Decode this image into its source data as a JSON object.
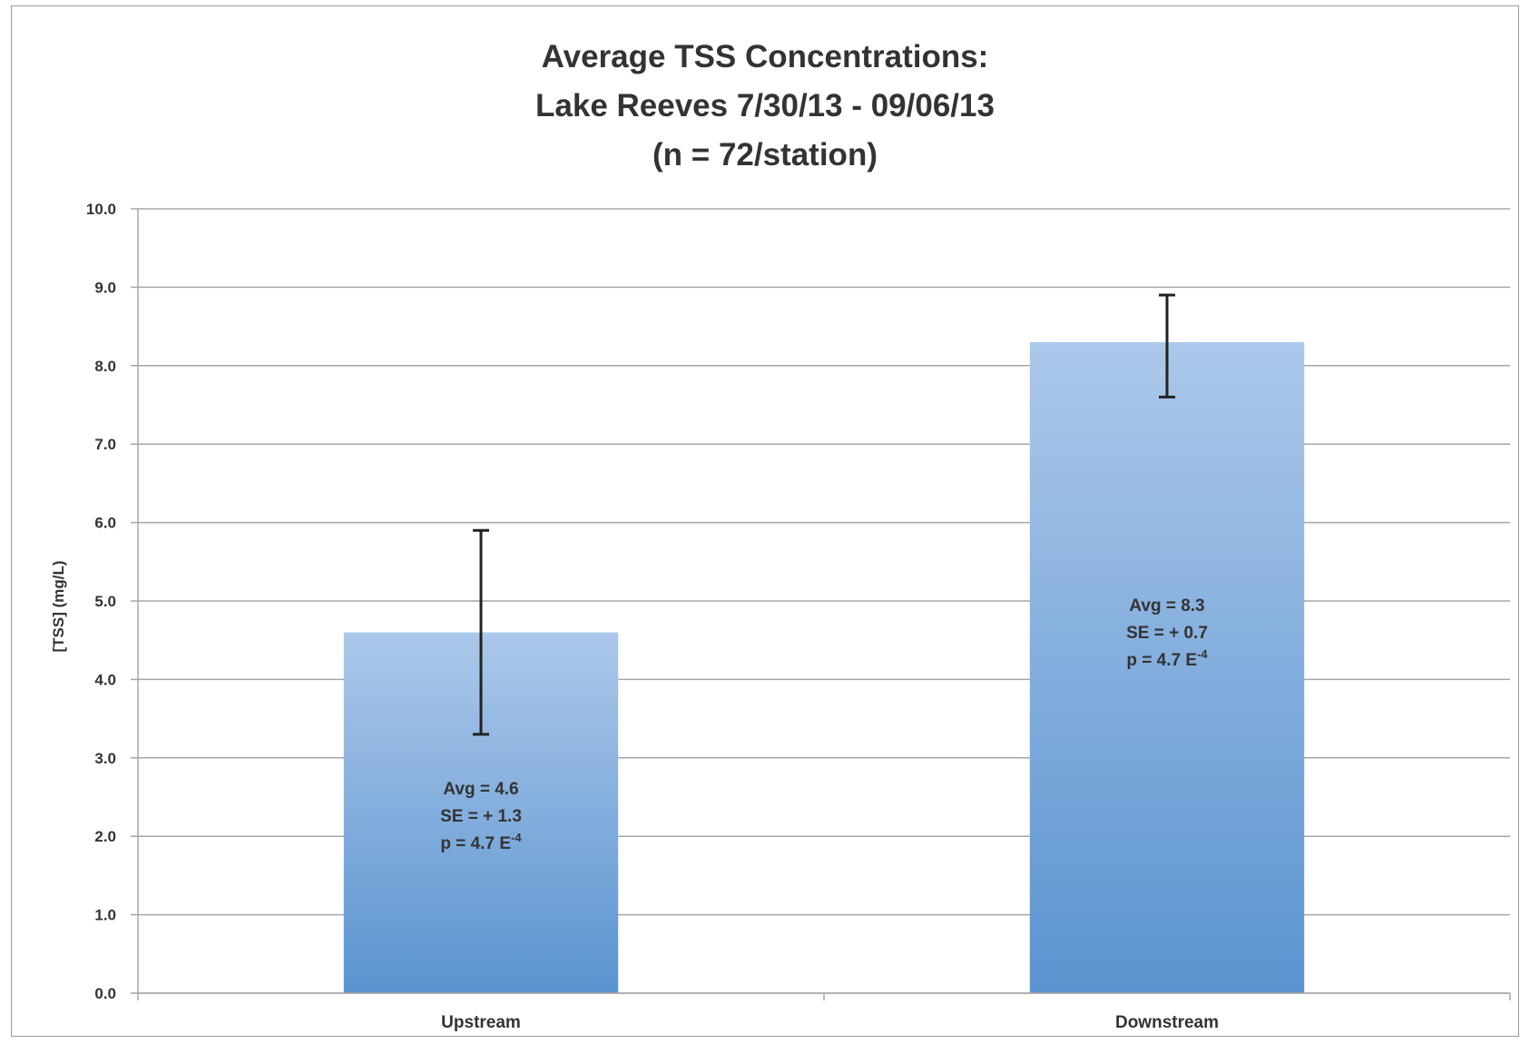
{
  "chart_data": {
    "type": "bar",
    "title_lines": [
      "Average TSS Concentrations:",
      "Lake Reeves 7/30/13 - 09/06/13",
      "(n = 72/station)"
    ],
    "xlabel": "",
    "ylabel": "[TSS] (mg/L)",
    "ylim": [
      0,
      10
    ],
    "yticks": [
      "0.0",
      "1.0",
      "2.0",
      "3.0",
      "4.0",
      "5.0",
      "6.0",
      "7.0",
      "8.0",
      "9.0",
      "10.0"
    ],
    "grid": true,
    "categories": [
      "Upstream",
      "Downstream"
    ],
    "values": [
      4.6,
      8.3
    ],
    "error_low": [
      3.3,
      7.6
    ],
    "error_high": [
      5.9,
      8.9
    ],
    "bar_color_top": "#acc8ea",
    "bar_color_bottom": "#5a94d0",
    "annotations": [
      {
        "avg": "Avg = 4.6",
        "se": "SE = + 1.3",
        "p": "p = 4.7 E",
        "exp": "-4"
      },
      {
        "avg": "Avg = 8.3",
        "se": "SE = + 0.7",
        "p": "p = 4.7 E",
        "exp": "-4"
      }
    ]
  }
}
